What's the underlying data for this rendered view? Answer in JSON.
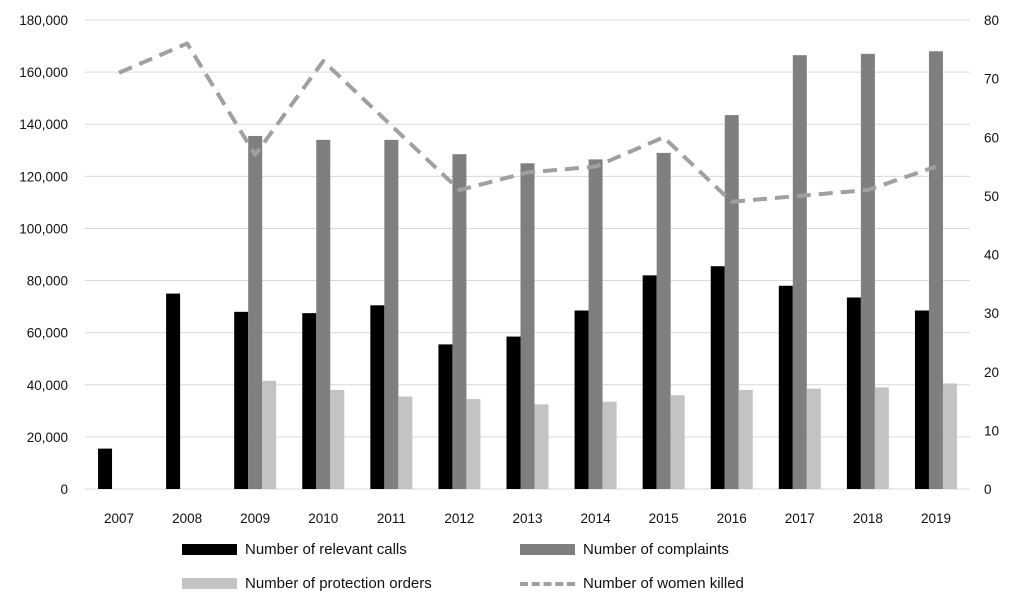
{
  "chart_data": {
    "type": "bar",
    "categories": [
      "2007",
      "2008",
      "2009",
      "2010",
      "2011",
      "2012",
      "2013",
      "2014",
      "2015",
      "2016",
      "2017",
      "2018",
      "2019"
    ],
    "left_axis": {
      "min": 0,
      "max": 180000,
      "step": 20000,
      "tick_labels": [
        "0",
        "20,000",
        "40,000",
        "60,000",
        "80,000",
        "100,000",
        "120,000",
        "140,000",
        "160,000",
        "180,000"
      ]
    },
    "right_axis": {
      "min": 0,
      "max": 80,
      "step": 10,
      "tick_labels": [
        "0",
        "10",
        "20",
        "30",
        "40",
        "50",
        "60",
        "70",
        "80"
      ]
    },
    "grid": true,
    "legend_position": "bottom",
    "series": [
      {
        "name": "Number of relevant calls",
        "kind": "bar",
        "axis": "left",
        "color": "#000000",
        "values": [
          15500,
          75000,
          68000,
          67500,
          70500,
          55500,
          58500,
          68500,
          82000,
          85500,
          78000,
          73500,
          68500
        ]
      },
      {
        "name": "Number of complaints",
        "kind": "bar",
        "axis": "left",
        "color": "#7f7f7f",
        "values": [
          null,
          null,
          135500,
          134000,
          134000,
          128500,
          125000,
          126500,
          129000,
          143500,
          166500,
          167000,
          168000
        ]
      },
      {
        "name": "Number of protection orders",
        "kind": "bar",
        "axis": "left",
        "color": "#c3c3c3",
        "values": [
          null,
          null,
          41500,
          38000,
          35500,
          34500,
          32500,
          33500,
          36000,
          38000,
          38500,
          39000,
          40500
        ]
      },
      {
        "name": "Number of women killed",
        "kind": "line",
        "axis": "right",
        "color": "#a0a0a0",
        "dashed": true,
        "values": [
          71,
          76,
          57,
          73,
          62,
          51,
          54,
          55,
          60,
          49,
          50,
          51,
          55
        ]
      }
    ]
  }
}
